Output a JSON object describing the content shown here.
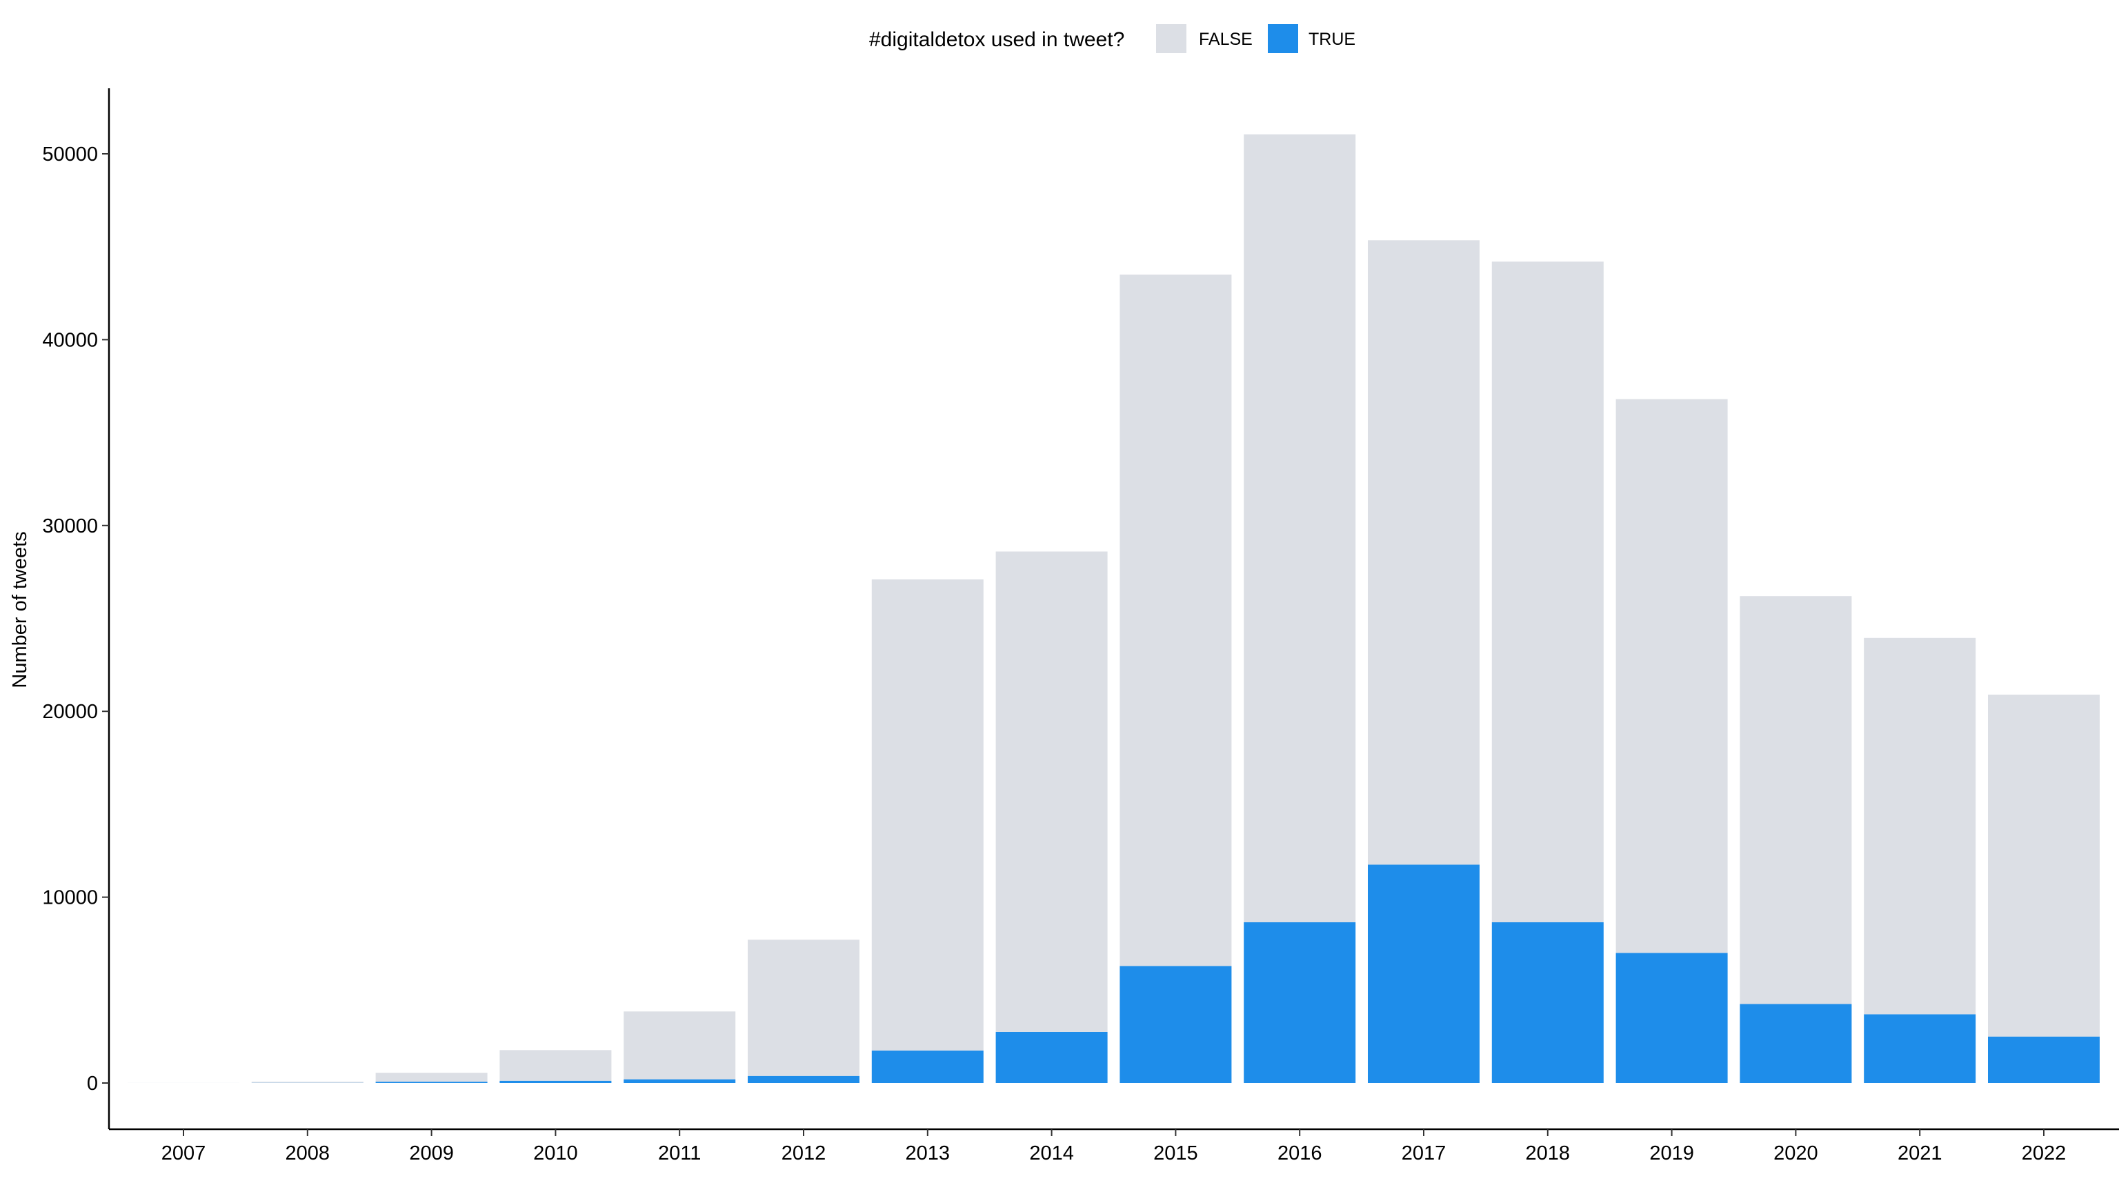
{
  "chart_data": {
    "type": "bar",
    "stacked": true,
    "title": "",
    "xlabel": "",
    "ylabel": "Number of tweets",
    "ylim": [
      0,
      53000
    ],
    "yticks": [
      0,
      10000,
      20000,
      30000,
      40000,
      50000
    ],
    "grid": false,
    "legend": {
      "title": "#digitaldetox used in tweet?",
      "position": "top",
      "entries": [
        "FALSE",
        "TRUE"
      ]
    },
    "categories": [
      "2007",
      "2008",
      "2009",
      "2010",
      "2011",
      "2012",
      "2013",
      "2014",
      "2015",
      "2016",
      "2017",
      "2018",
      "2019",
      "2020",
      "2021",
      "2022"
    ],
    "series": [
      {
        "name": "FALSE",
        "color": "#dcdfe5",
        "values": [
          5,
          60,
          480,
          1650,
          3650,
          7330,
          25350,
          25850,
          37200,
          42400,
          33600,
          35550,
          29800,
          21950,
          20250,
          18400
        ]
      },
      {
        "name": "TRUE",
        "color": "#1e8dea",
        "values": [
          0,
          10,
          70,
          120,
          200,
          380,
          1750,
          2750,
          6300,
          8650,
          11750,
          8650,
          7000,
          4250,
          3700,
          2500
        ]
      }
    ]
  }
}
